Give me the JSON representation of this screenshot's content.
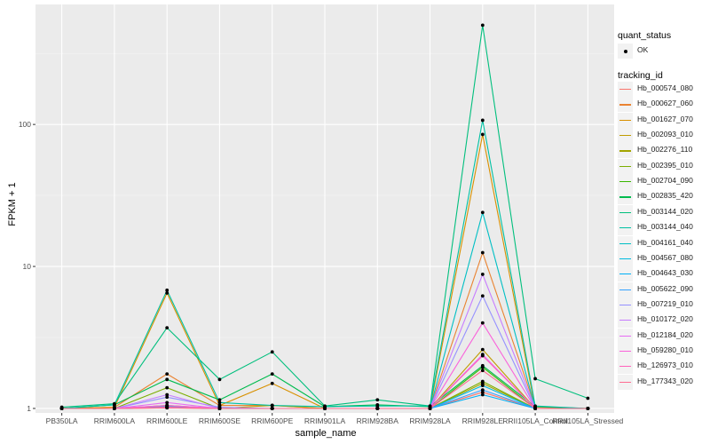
{
  "chart_data": {
    "type": "line",
    "xlabel": "sample_name",
    "ylabel": "FPKM + 1",
    "y_scale": "log10",
    "ylim": [
      0.93,
      700
    ],
    "y_ticks": [
      1,
      10,
      100
    ],
    "y_tick_labels": [
      "1",
      "10",
      "100"
    ],
    "grid": true,
    "legend_position": "right",
    "categories": [
      "PB350LA",
      "RRIM600LA",
      "RRIM600LE",
      "RRIM600SE",
      "RRIM600PE",
      "RRIM901LA",
      "RRIM928BA",
      "RRIM928LA",
      "RRIM928LE",
      "RRII105LA_Control",
      "RRII105LA_Stressed"
    ],
    "point_legend": {
      "title": "quant_status",
      "entries": [
        "OK"
      ]
    },
    "line_legend_title": "tracking_id",
    "series": [
      {
        "name": "Hb_000574_080",
        "color": "#F8766D",
        "values": [
          1,
          1,
          1.01,
          1,
          1,
          1,
          1,
          1,
          1.3,
          1,
          1
        ]
      },
      {
        "name": "Hb_000627_060",
        "color": "#EA8331",
        "values": [
          1,
          1.02,
          1.75,
          1.05,
          1.05,
          1,
          1,
          1,
          12.5,
          1.02,
          1
        ]
      },
      {
        "name": "Hb_001627_070",
        "color": "#D89000",
        "values": [
          1,
          1.02,
          6.5,
          1.05,
          1.5,
          1,
          1,
          1,
          85,
          1,
          1
        ]
      },
      {
        "name": "Hb_002093_010",
        "color": "#C09B00",
        "values": [
          1,
          1,
          1.05,
          1,
          1.05,
          1,
          1,
          1,
          2.6,
          1,
          1
        ]
      },
      {
        "name": "Hb_002276_110",
        "color": "#A3A500",
        "values": [
          1,
          1,
          1.03,
          1,
          1,
          1,
          1,
          1,
          1.5,
          1,
          1
        ]
      },
      {
        "name": "Hb_002395_010",
        "color": "#7CAE00",
        "values": [
          1,
          1,
          1.4,
          1,
          1,
          1,
          1,
          1,
          1.55,
          1,
          1
        ]
      },
      {
        "name": "Hb_002704_090",
        "color": "#39B600",
        "values": [
          1,
          1,
          1.02,
          1,
          1,
          1,
          1,
          1,
          1.95,
          1,
          1
        ]
      },
      {
        "name": "Hb_002835_420",
        "color": "#00BB4E",
        "values": [
          1,
          1.06,
          1.6,
          1.15,
          1.75,
          1.03,
          1.06,
          1.03,
          2.0,
          1.03,
          1
        ]
      },
      {
        "name": "Hb_003144_020",
        "color": "#00BF7D",
        "values": [
          1.02,
          1.08,
          3.7,
          1.6,
          2.5,
          1.04,
          1.15,
          1.04,
          500,
          1.62,
          1.18
        ]
      },
      {
        "name": "Hb_003144_040",
        "color": "#00C1A3",
        "values": [
          1,
          1.06,
          6.8,
          1.1,
          1.05,
          1.03,
          1.04,
          1.04,
          107,
          1.04,
          1
        ]
      },
      {
        "name": "Hb_004161_040",
        "color": "#00BFC4",
        "values": [
          1,
          1,
          1.02,
          1,
          1,
          1,
          1,
          1,
          24,
          1,
          1
        ]
      },
      {
        "name": "Hb_004567_080",
        "color": "#00BAE0",
        "values": [
          1,
          1,
          1.03,
          1,
          1,
          1,
          1,
          1,
          1.45,
          1,
          1
        ]
      },
      {
        "name": "Hb_004643_030",
        "color": "#00B0F6",
        "values": [
          1,
          1,
          1.02,
          1,
          1,
          1,
          1,
          1,
          1.25,
          1,
          1
        ]
      },
      {
        "name": "Hb_005622_090",
        "color": "#35A2FF",
        "values": [
          1,
          1,
          1.02,
          1,
          1,
          1,
          1,
          1,
          1.35,
          1,
          1
        ]
      },
      {
        "name": "Hb_007219_010",
        "color": "#9590FF",
        "values": [
          1,
          1,
          1.2,
          1.02,
          1,
          1,
          1,
          1,
          6.2,
          1,
          1
        ]
      },
      {
        "name": "Hb_010172_020",
        "color": "#C77CFF",
        "values": [
          1,
          1,
          1.25,
          1,
          1,
          1,
          1,
          1,
          8.8,
          1,
          1
        ]
      },
      {
        "name": "Hb_012184_020",
        "color": "#E76BF3",
        "values": [
          1,
          1,
          1.1,
          1,
          1,
          1,
          1,
          1,
          2.4,
          1,
          1
        ]
      },
      {
        "name": "Hb_059280_010",
        "color": "#FA62DB",
        "values": [
          1,
          1,
          1.05,
          1,
          1,
          1,
          1,
          1,
          4.0,
          1,
          1
        ]
      },
      {
        "name": "Hb_126973_010",
        "color": "#FF62BC",
        "values": [
          1,
          1,
          1.02,
          1,
          1,
          1,
          1,
          1,
          2.35,
          1,
          1
        ]
      },
      {
        "name": "Hb_177343_020",
        "color": "#FF6C91",
        "values": [
          1,
          1,
          1.01,
          1,
          1,
          1,
          1,
          1,
          1.85,
          1,
          1
        ]
      }
    ]
  }
}
